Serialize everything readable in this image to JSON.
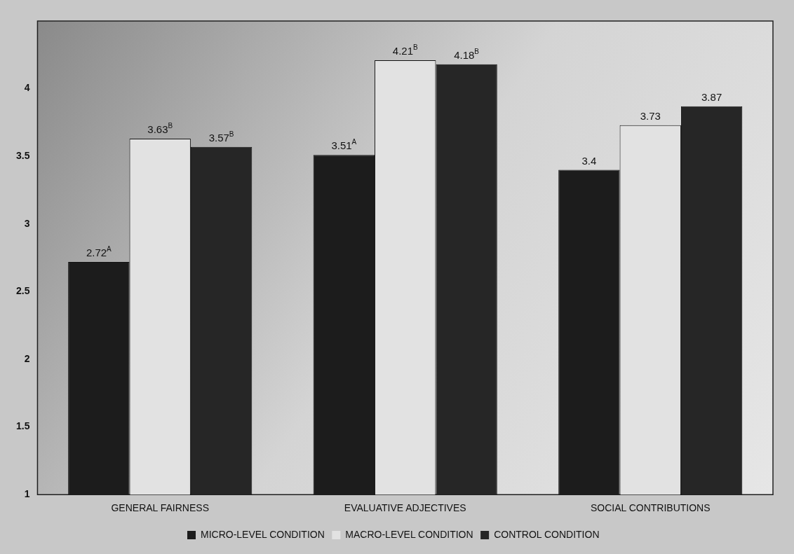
{
  "chart_data": {
    "type": "bar",
    "categories": [
      "GENERAL FAIRNESS",
      "EVALUATIVE ADJECTIVES",
      "SOCIAL CONTRIBUTIONS"
    ],
    "series": [
      {
        "name": "MICRO-LEVEL CONDITION",
        "color": "#1c1c1c",
        "values": [
          2.72,
          3.51,
          3.4
        ],
        "value_labels": [
          "2.72$^{A}$",
          "3.51$^{A}$",
          "3.4"
        ]
      },
      {
        "name": "MACRO-LEVEL CONDITION",
        "color": "#e2e2e2",
        "values": [
          3.63,
          4.21,
          3.73
        ],
        "value_labels": [
          "3.63$^{B}$",
          "4.21$^{B}$",
          "3.73"
        ]
      },
      {
        "name": "CONTROL CONDITION",
        "color": "#262626",
        "values": [
          3.57,
          4.18,
          3.87
        ],
        "value_labels": [
          "3.57$^{B}$",
          "4.18$^{B}$",
          "3.87"
        ]
      }
    ],
    "ylim": [
      1,
      4.5
    ],
    "yticks": [
      1,
      1.5,
      2,
      2.5,
      3,
      3.5,
      4
    ],
    "grid": false,
    "legend": "bottom"
  }
}
